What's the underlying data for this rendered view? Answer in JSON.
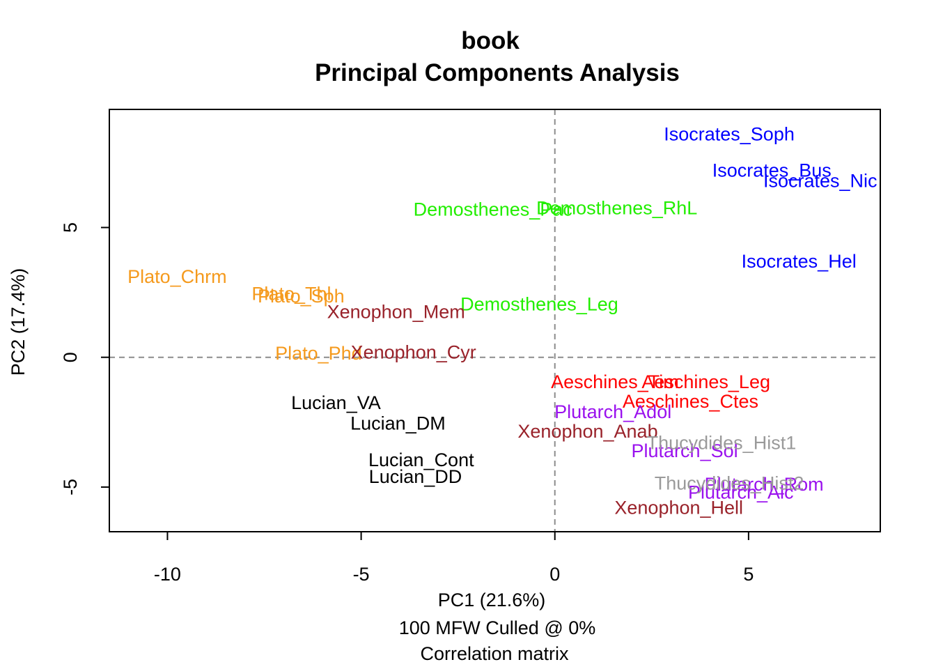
{
  "chart_data": {
    "type": "scatter",
    "title": "book",
    "subtitle": "Principal Components Analysis",
    "xlabel": "PC1 (21.6%)",
    "ylabel": "PC2 (17.4%)",
    "caption_lines": [
      "100 MFW  Culled @ 0%",
      "Correlation matrix"
    ],
    "xlim": [
      -11.5,
      8.4
    ],
    "ylim": [
      -6.72,
      9.55
    ],
    "x_ticks": [
      -10,
      -5,
      0,
      5
    ],
    "x_tick_labels": [
      "-10",
      "-5",
      "0",
      "5"
    ],
    "y_ticks": [
      -5,
      0,
      5
    ],
    "y_tick_labels": [
      "-5",
      "0",
      "5"
    ],
    "reference_lines": {
      "x": 0,
      "y": 0
    },
    "grid": false,
    "legend": "none",
    "colors": {
      "Isocrates": "#0000ff",
      "Demosthenes": "#22ee00",
      "Plato": "#f59a1d",
      "Xenophon": "#99222a",
      "Lucian": "#000000",
      "Aeschines": "#ff0000",
      "Plutarch": "#9a11ee",
      "Thucydides": "#9a9a9a"
    },
    "points": [
      {
        "label": "Isocrates_Soph",
        "group": "Isocrates",
        "x": 4.5,
        "y": 8.6
      },
      {
        "label": "Isocrates_Bus",
        "group": "Isocrates",
        "x": 5.6,
        "y": 7.2
      },
      {
        "label": "Isocrates_Nic",
        "group": "Isocrates",
        "x": 6.85,
        "y": 6.8
      },
      {
        "label": "Isocrates_Hel",
        "group": "Isocrates",
        "x": 6.3,
        "y": 3.7
      },
      {
        "label": "Demosthenes_Pac",
        "group": "Demosthenes",
        "x": -1.6,
        "y": 5.7
      },
      {
        "label": "Demosthenes_RhL",
        "group": "Demosthenes",
        "x": 1.6,
        "y": 5.75
      },
      {
        "label": "Demosthenes_Leg",
        "group": "Demosthenes",
        "x": -0.4,
        "y": 2.05
      },
      {
        "label": "Plato_Chrm",
        "group": "Plato",
        "x": -9.75,
        "y": 3.1
      },
      {
        "label": "Plato_Thl",
        "group": "Plato",
        "x": -6.8,
        "y": 2.45
      },
      {
        "label": "Plato_Sph",
        "group": "Plato",
        "x": -6.55,
        "y": 2.35
      },
      {
        "label": "Plato_Phd",
        "group": "Plato",
        "x": -6.1,
        "y": 0.15
      },
      {
        "label": "Xenophon_Mem",
        "group": "Xenophon",
        "x": -4.1,
        "y": 1.75
      },
      {
        "label": "Xenophon_Cyr",
        "group": "Xenophon",
        "x": -3.65,
        "y": 0.2
      },
      {
        "label": "Xenophon_Anab",
        "group": "Xenophon",
        "x": 0.85,
        "y": -2.85
      },
      {
        "label": "Xenophon_Hell",
        "group": "Xenophon",
        "x": 3.2,
        "y": -5.8
      },
      {
        "label": "Lucian_VA",
        "group": "Lucian",
        "x": -5.65,
        "y": -1.75
      },
      {
        "label": "Lucian_DM",
        "group": "Lucian",
        "x": -4.05,
        "y": -2.55
      },
      {
        "label": "Lucian_Cont",
        "group": "Lucian",
        "x": -3.45,
        "y": -3.95
      },
      {
        "label": "Lucian_DD",
        "group": "Lucian",
        "x": -3.6,
        "y": -4.6
      },
      {
        "label": "Aeschines_Tim",
        "group": "Aeschines",
        "x": 1.55,
        "y": -0.95
      },
      {
        "label": "Aeschines_Leg",
        "group": "Aeschines",
        "x": 3.9,
        "y": -0.95
      },
      {
        "label": "Aeschines_Ctes",
        "group": "Aeschines",
        "x": 3.5,
        "y": -1.7
      },
      {
        "label": "Plutarch_Adol",
        "group": "Plutarch",
        "x": 1.5,
        "y": -2.1
      },
      {
        "label": "Plutarch_Sol",
        "group": "Plutarch",
        "x": 3.35,
        "y": -3.6
      },
      {
        "label": "Plutarch_Rom",
        "group": "Plutarch",
        "x": 5.4,
        "y": -4.9
      },
      {
        "label": "Plutarch_Alc",
        "group": "Plutarch",
        "x": 4.8,
        "y": -5.2
      },
      {
        "label": "Thucydides_Hist1",
        "group": "Thucydides",
        "x": 4.3,
        "y": -3.3
      },
      {
        "label": "Thucydides_Hist2",
        "group": "Thucydides",
        "x": 4.5,
        "y": -4.85
      }
    ]
  }
}
